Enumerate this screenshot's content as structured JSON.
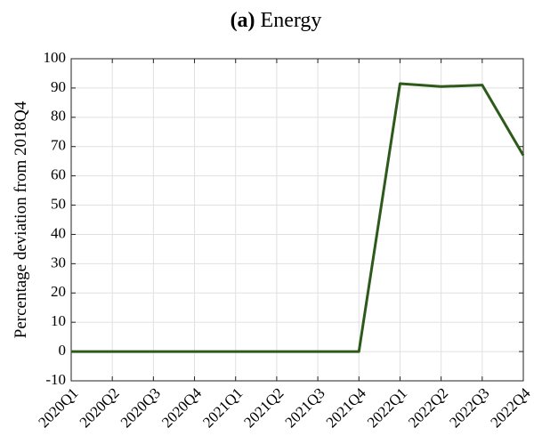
{
  "chart_data": {
    "type": "line",
    "panel": "(a)",
    "title": "Energy",
    "ylabel": "Percentage deviation from 2018Q4",
    "categories": [
      "2020Q1",
      "2020Q2",
      "2020Q3",
      "2020Q4",
      "2021Q1",
      "2021Q2",
      "2021Q3",
      "2021Q4",
      "2022Q1",
      "2022Q2",
      "2022Q3",
      "2022Q4"
    ],
    "values": [
      0,
      0,
      0,
      0,
      0,
      0,
      0,
      0,
      91.5,
      90.5,
      91,
      67
    ],
    "color": "#2d5a1b",
    "ylim": [
      -10,
      100
    ],
    "yticks": [
      -10,
      0,
      10,
      20,
      30,
      40,
      50,
      60,
      70,
      80,
      90,
      100
    ],
    "grid": true
  }
}
